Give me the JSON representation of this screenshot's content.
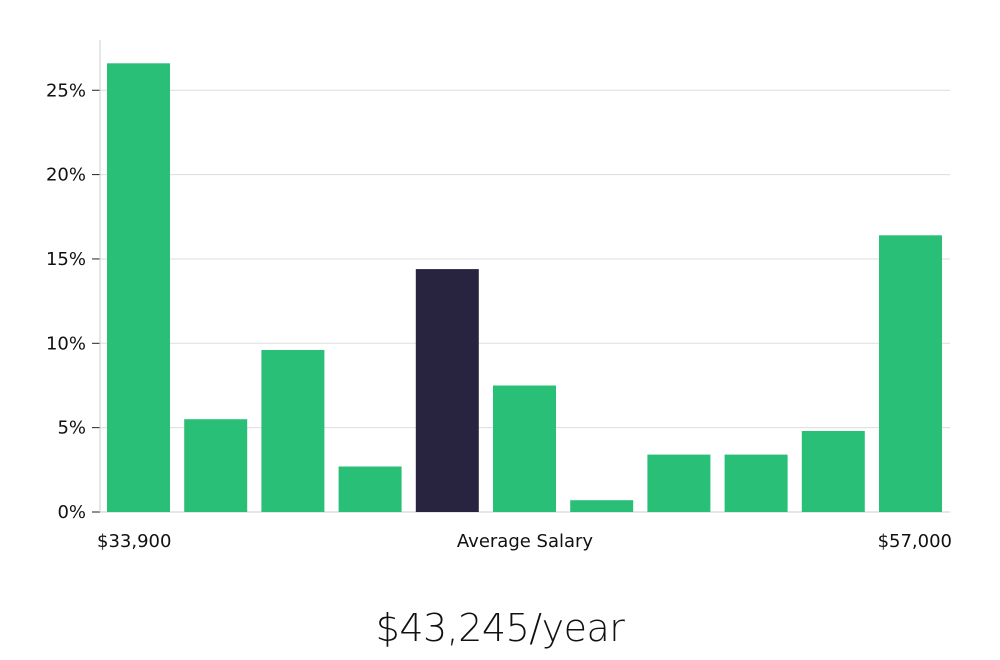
{
  "chart_data": {
    "type": "bar",
    "categories": [
      "1",
      "2",
      "3",
      "4",
      "5",
      "6",
      "7",
      "8",
      "9",
      "10",
      "11"
    ],
    "values": [
      26.6,
      5.5,
      9.6,
      2.7,
      14.4,
      7.5,
      0.7,
      3.4,
      3.4,
      4.8,
      16.4
    ],
    "highlight_index": 4,
    "ylim": [
      0,
      28
    ],
    "yticks": [
      0,
      5,
      10,
      15,
      20,
      25
    ],
    "ytick_labels": [
      "0%",
      "5%",
      "10%",
      "15%",
      "20%",
      "25%"
    ],
    "x_min_label": "$33,900",
    "x_center_label": "Average Salary",
    "x_max_label": "$57,000",
    "grid": true,
    "colors": {
      "bar": "#2abf77",
      "highlight": "#28243f",
      "grid": "#dddddd",
      "axis": "#cccccc"
    }
  },
  "average_salary": "$43,245/year"
}
